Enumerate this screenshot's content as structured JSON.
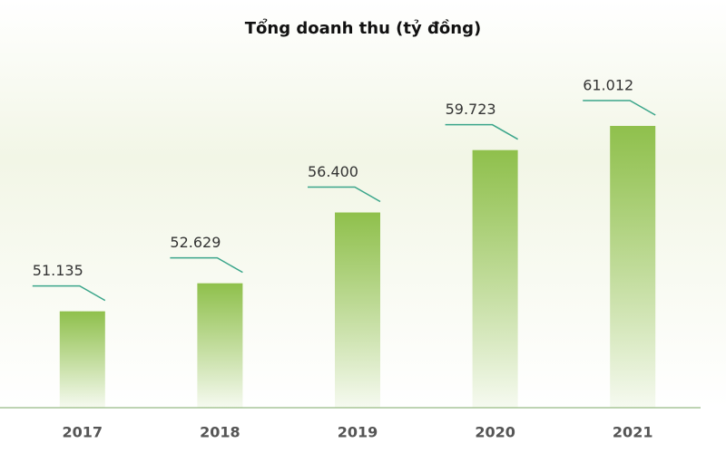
{
  "chart_data": {
    "type": "bar",
    "title": "Tổng doanh thu (tỷ đồng)",
    "categories": [
      "2017",
      "2018",
      "2019",
      "2020",
      "2021"
    ],
    "values": [
      51135,
      52629,
      56400,
      59723,
      61012
    ],
    "value_labels": [
      "51.135",
      "52.629",
      "56.400",
      "59.723",
      "61.012"
    ],
    "color": "#8fc04c",
    "ylim": [
      46000,
      62000
    ]
  }
}
